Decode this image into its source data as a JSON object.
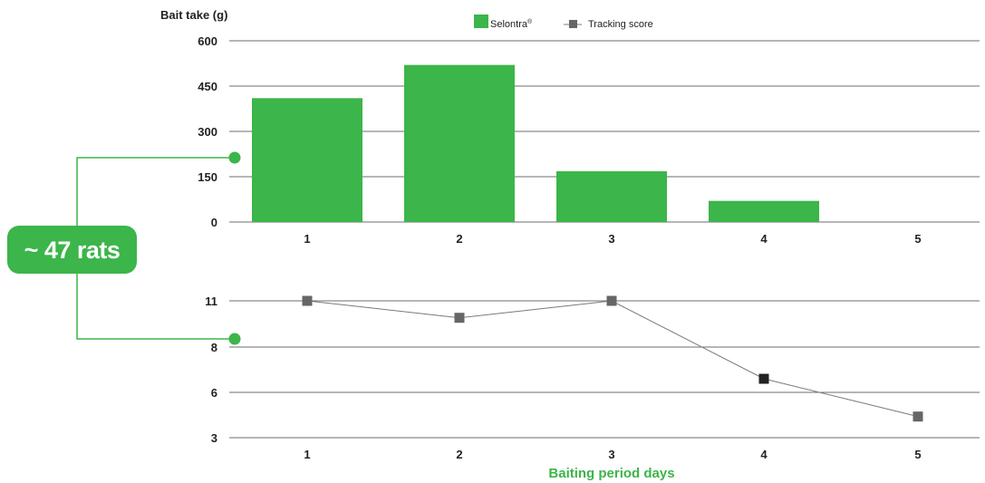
{
  "colors": {
    "green": "#3cb54a",
    "marker": "#666666",
    "marker_dark": "#222222",
    "line": "#7a7a7a",
    "grid": "#6e6e6e"
  },
  "badge": {
    "text": "~ 47 rats"
  },
  "legend": {
    "bar_label": "Selontra",
    "bar_label_mark": "®",
    "line_label": "Tracking score"
  },
  "chart_data": [
    {
      "type": "bar",
      "ylabel": "Bait take (g)",
      "categories": [
        "1",
        "2",
        "3",
        "4",
        "5"
      ],
      "series": [
        {
          "name": "Selontra®",
          "values": [
            410,
            520,
            168,
            70,
            0
          ]
        }
      ],
      "yticks": [
        0,
        150,
        300,
        450,
        600
      ],
      "ylim": [
        0,
        600
      ],
      "grid": true,
      "legend_position": "top"
    },
    {
      "type": "line",
      "xlabel": "Baiting period days",
      "x": [
        "1",
        "2",
        "3",
        "4",
        "5"
      ],
      "series": [
        {
          "name": "Tracking score",
          "values": [
            11,
            9.9,
            11,
            6.6,
            4.4
          ]
        }
      ],
      "yticks": [
        3,
        6,
        8,
        11
      ],
      "grid": true
    }
  ]
}
